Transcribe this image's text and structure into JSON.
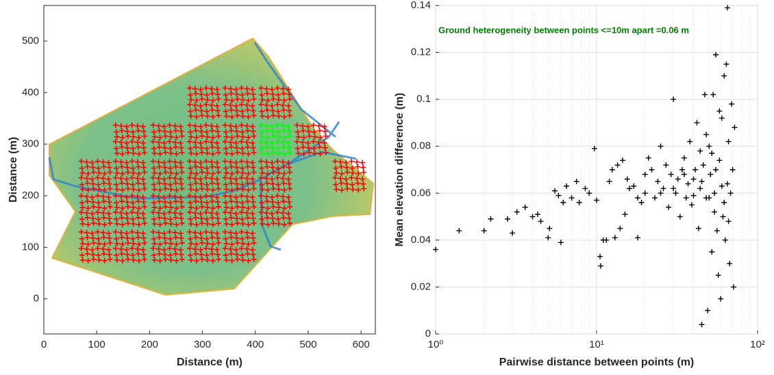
{
  "chart_data": [
    {
      "type": "scatter",
      "marker": "cluster",
      "xlabel": "Distance (m)",
      "ylabel": "Distance (m)",
      "xlim": [
        0,
        627
      ],
      "ylim": [
        -68,
        569
      ],
      "xticks": [
        0,
        100,
        200,
        300,
        400,
        500,
        600
      ],
      "yticks": [
        0,
        100,
        200,
        300,
        400,
        500
      ],
      "series": [
        {
          "color": "#ff0000",
          "x": [
            98,
            163,
            234,
            303,
            370,
            98,
            163,
            234,
            303,
            370,
            438,
            98,
            163,
            234,
            303,
            370,
            438,
            578,
            163,
            234,
            303,
            370,
            506,
            303,
            370,
            438
          ],
          "values": [
            102,
            102,
            102,
            102,
            102,
            172,
            172,
            172,
            172,
            172,
            172,
            239,
            239,
            239,
            239,
            239,
            239,
            239,
            309,
            309,
            309,
            309,
            309,
            381,
            381,
            381
          ]
        },
        {
          "color": "#00ff00",
          "x": [
            438
          ],
          "values": [
            309
          ]
        }
      ]
    },
    {
      "type": "scatter",
      "marker": "plus",
      "log_x": true,
      "grid": true,
      "xlabel": "Pairwise distance between points (m)",
      "ylabel": "Mean elevation difference (m)",
      "annotation": "Ground heterogeneity between points <=10m apart =0.06 m",
      "annotation_color": "#008000",
      "xlim": [
        1,
        100
      ],
      "ylim": [
        0,
        0.14
      ],
      "xticks": [
        {
          "value": 1,
          "label": "10⁰"
        },
        {
          "value": 10,
          "label": "10¹"
        },
        {
          "value": 100,
          "label": "10²"
        }
      ],
      "yticks": [
        0,
        0.02,
        0.04,
        0.06,
        0.08,
        0.1,
        0.12,
        0.14
      ],
      "series": [
        {
          "color": "#000000",
          "x": [
            1,
            1.4,
            2,
            2.2,
            2.8,
            3,
            3.2,
            3.6,
            4,
            4.3,
            4.5,
            5,
            5.1,
            5.5,
            5.8,
            6,
            6.2,
            6.5,
            7,
            7.5,
            7.8,
            8.5,
            9,
            9.7,
            10,
            10.5,
            10.6,
            11,
            11.5,
            12,
            12.5,
            13,
            13.5,
            14,
            14.5,
            15,
            15.5,
            16,
            17,
            18,
            19,
            20,
            21,
            22,
            23,
            24,
            25,
            26,
            27,
            28,
            29,
            30,
            31,
            32,
            33,
            34,
            35,
            36,
            37,
            38,
            39,
            40,
            41,
            42,
            43,
            44,
            45,
            46,
            47,
            48,
            49,
            50,
            51,
            52,
            53,
            54,
            55,
            56,
            57,
            58,
            59,
            60,
            61,
            62,
            63,
            64,
            65,
            66,
            67,
            68,
            69,
            70,
            71,
            72,
            45,
            50,
            55,
            60,
            40,
            35,
            30,
            25,
            20,
            18,
            52,
            58,
            62,
            66,
            48,
            44,
            54,
            65
          ],
          "values": [
            0.036,
            0.044,
            0.044,
            0.049,
            0.049,
            0.043,
            0.052,
            0.054,
            0.05,
            0.051,
            0.048,
            0.041,
            0.045,
            0.061,
            0.059,
            0.039,
            0.056,
            0.063,
            0.058,
            0.065,
            0.056,
            0.062,
            0.06,
            0.079,
            0.057,
            0.033,
            0.029,
            0.04,
            0.04,
            0.065,
            0.07,
            0.041,
            0.072,
            0.045,
            0.074,
            0.051,
            0.066,
            0.062,
            0.063,
            0.041,
            0.056,
            0.068,
            0.075,
            0.07,
            0.058,
            0.065,
            0.08,
            0.062,
            0.072,
            0.054,
            0.068,
            0.1,
            0.06,
            0.066,
            0.05,
            0.07,
            0.075,
            0.058,
            0.064,
            0.082,
            0.055,
            0.066,
            0.07,
            0.09,
            0.045,
            0.062,
            0.004,
            0.072,
            0.102,
            0.058,
            0.01,
            0.08,
            0.068,
            0.035,
            0.102,
            0.06,
            0.119,
            0.044,
            0.025,
            0.074,
            0.015,
            0.092,
            0.05,
            0.11,
            0.04,
            0.115,
            0.139,
            0.082,
            0.03,
            0.06,
            0.098,
            0.07,
            0.02,
            0.088,
            0.065,
            0.058,
            0.07,
            0.063,
            0.059,
            0.068,
            0.062,
            0.06,
            0.06,
            0.058,
            0.077,
            0.095,
            0.056,
            0.048,
            0.085,
            0.078,
            0.052,
            0.064
          ]
        }
      ]
    }
  ]
}
